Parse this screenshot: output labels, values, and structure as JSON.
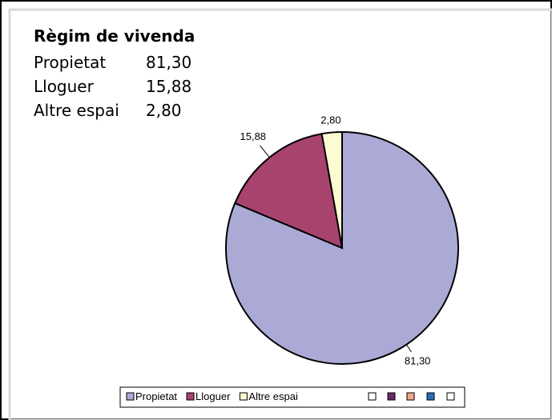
{
  "chart_data": {
    "type": "pie",
    "title": "Règim de vivenda",
    "categories": [
      "Propietat",
      "Lloguer",
      "Altre espai"
    ],
    "values": [
      81.3,
      15.88,
      2.8
    ],
    "value_labels": [
      "81,30",
      "15,88",
      "2,80"
    ],
    "colors": [
      "#abaad6",
      "#a8436f",
      "#fdfbd3"
    ]
  }
}
